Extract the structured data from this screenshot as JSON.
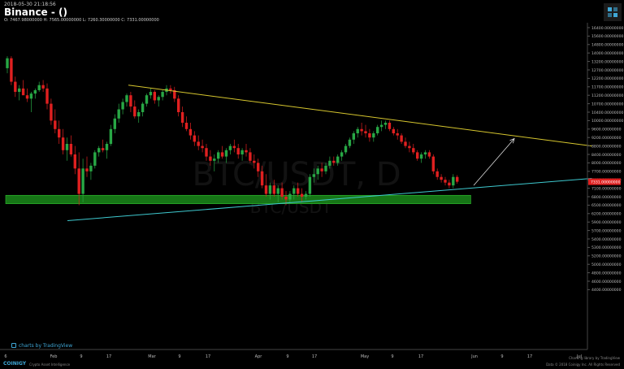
{
  "header": {
    "date": "2018-05-30 21:18:56",
    "title": "Binance - ()",
    "ohlc": "O: 7467.98000000 H: 7565.00000000 L: 7260.30000000 C: 7331.00000000"
  },
  "watermark": {
    "primary": "BTC/USDT, D",
    "secondary": "BTC/USDT"
  },
  "footer": {
    "tv_credit": "charts by TradingView",
    "brand": "COINIGY",
    "tagline": "Crypto Asset Intelligence",
    "right_line1": "Charting library by TradingView",
    "right_line2": "Data © 2018 Coinigy Inc. All Rights Reserved"
  },
  "colors": {
    "up": "#28a745",
    "down": "#e02020",
    "resistance_line": "#d6c62e",
    "support_line": "#3ec9cf",
    "support_zone": "#1a8a1a",
    "last_price_bg": "#e02020",
    "projection_arrow": "#dddddd"
  },
  "chart_data": {
    "type": "candlestick",
    "title": "BTC/USDT, D",
    "x_ticks": [
      "6",
      "Feb",
      "9",
      "17",
      "Mar",
      "9",
      "17",
      "Apr",
      "9",
      "17",
      "May",
      "9",
      "17",
      "Jun",
      "9",
      "17",
      "Jul"
    ],
    "y_ticks": [
      "16400.00000000",
      "15600.00000000",
      "14800.00000000",
      "14000.00000000",
      "13200.00000000",
      "12700.00000000",
      "12200.00000000",
      "11700.00000000",
      "11200.00000000",
      "10700.00000000",
      "10400.00000000",
      "10000.00000000",
      "9600.00000000",
      "9200.00000000",
      "8800.00000000",
      "8400.00000000",
      "8000.00000000",
      "7700.00000000",
      "7400.00000000",
      "7100.00000000",
      "6800.00000000",
      "6500.00000000",
      "6200.00000000",
      "5900.00000000",
      "5700.00000000",
      "5400.00000000",
      "5300.00000000",
      "5200.00000000",
      "5000.00000000",
      "4800.00000000",
      "4600.00000000",
      "4400.00000000"
    ],
    "last_price_label": "7331.00000000",
    "series": [
      {
        "name": "candles",
        "values": [
          [
            12800,
            13700,
            12500,
            13500
          ],
          [
            13500,
            13700,
            11800,
            12000
          ],
          [
            12000,
            12300,
            11100,
            11400
          ],
          [
            11400,
            11800,
            10900,
            11600
          ],
          [
            11600,
            12100,
            11300,
            11200
          ],
          [
            11200,
            11600,
            10800,
            11000
          ],
          [
            11000,
            11400,
            10400,
            11300
          ],
          [
            11300,
            11600,
            11000,
            11500
          ],
          [
            11500,
            12000,
            11400,
            11800
          ],
          [
            11800,
            12100,
            11400,
            11600
          ],
          [
            11600,
            11900,
            10500,
            10700
          ],
          [
            10700,
            11000,
            9800,
            10000
          ],
          [
            10000,
            10500,
            9400,
            9600
          ],
          [
            9600,
            10000,
            8900,
            9200
          ],
          [
            9200,
            9600,
            8400,
            8600
          ],
          [
            8600,
            9200,
            8100,
            8900
          ],
          [
            8900,
            9300,
            8300,
            8400
          ],
          [
            8400,
            8800,
            7600,
            7800
          ],
          [
            7800,
            8500,
            6500,
            6900
          ],
          [
            6900,
            8200,
            6600,
            7800
          ],
          [
            7800,
            8300,
            7500,
            7700
          ],
          [
            7700,
            8000,
            7400,
            7900
          ],
          [
            7900,
            8600,
            7800,
            8500
          ],
          [
            8500,
            8800,
            8300,
            8700
          ],
          [
            8700,
            9100,
            8500,
            8600
          ],
          [
            8600,
            9000,
            8200,
            8900
          ],
          [
            8900,
            9800,
            8800,
            9600
          ],
          [
            9600,
            10300,
            9400,
            10100
          ],
          [
            10100,
            10700,
            9900,
            10500
          ],
          [
            10500,
            11000,
            10300,
            10800
          ],
          [
            10800,
            11300,
            10600,
            11200
          ],
          [
            11200,
            11400,
            10400,
            10600
          ],
          [
            10600,
            10900,
            10100,
            10200
          ],
          [
            10200,
            10500,
            9900,
            10400
          ],
          [
            10400,
            10800,
            10200,
            10700
          ],
          [
            10700,
            11300,
            10600,
            11200
          ],
          [
            11200,
            11600,
            11000,
            11400
          ],
          [
            11400,
            11500,
            10700,
            10900
          ],
          [
            10900,
            11200,
            10600,
            11100
          ],
          [
            11100,
            11500,
            10900,
            11400
          ],
          [
            11400,
            11800,
            11200,
            11600
          ],
          [
            11600,
            11800,
            11300,
            11500
          ],
          [
            11500,
            11700,
            10800,
            11000
          ],
          [
            11000,
            11200,
            10200,
            10400
          ],
          [
            10400,
            10600,
            9700,
            9900
          ],
          [
            9900,
            10200,
            9500,
            9600
          ],
          [
            9600,
            9900,
            9100,
            9300
          ],
          [
            9300,
            9500,
            8800,
            9000
          ],
          [
            9000,
            9300,
            8600,
            8800
          ],
          [
            8800,
            9100,
            8500,
            8700
          ],
          [
            8700,
            8900,
            8100,
            8300
          ],
          [
            8300,
            8600,
            7900,
            8100
          ],
          [
            8100,
            8400,
            7700,
            8200
          ],
          [
            8200,
            8600,
            8000,
            8500
          ],
          [
            8500,
            8800,
            8200,
            8300
          ],
          [
            8300,
            8700,
            8000,
            8600
          ],
          [
            8600,
            8900,
            8400,
            8800
          ],
          [
            8800,
            9100,
            8500,
            8700
          ],
          [
            8700,
            8900,
            8200,
            8400
          ],
          [
            8400,
            8700,
            8100,
            8600
          ],
          [
            8600,
            8900,
            8300,
            8500
          ],
          [
            8500,
            8700,
            8000,
            8100
          ],
          [
            8100,
            8400,
            7800,
            8000
          ],
          [
            8000,
            8200,
            7500,
            7700
          ],
          [
            7700,
            7900,
            7100,
            7200
          ],
          [
            7200,
            7600,
            6800,
            6900
          ],
          [
            6900,
            7300,
            6700,
            7200
          ],
          [
            7200,
            7400,
            6800,
            6900
          ],
          [
            6900,
            7200,
            6600,
            7100
          ],
          [
            7100,
            7300,
            6700,
            6800
          ],
          [
            6800,
            7000,
            6500,
            6700
          ],
          [
            6700,
            7000,
            6600,
            6900
          ],
          [
            6900,
            7200,
            6700,
            7100
          ],
          [
            7100,
            7300,
            6800,
            6900
          ],
          [
            6900,
            7100,
            6600,
            6800
          ],
          [
            6800,
            7000,
            6700,
            6900
          ],
          [
            6900,
            7600,
            6800,
            7500
          ],
          [
            7500,
            7800,
            7300,
            7600
          ],
          [
            7600,
            7900,
            7400,
            7800
          ],
          [
            7800,
            8000,
            7500,
            7700
          ],
          [
            7700,
            8000,
            7600,
            7900
          ],
          [
            7900,
            8300,
            7800,
            8100
          ],
          [
            8100,
            8300,
            7900,
            8000
          ],
          [
            8000,
            8400,
            7900,
            8300
          ],
          [
            8300,
            8600,
            8100,
            8500
          ],
          [
            8500,
            8900,
            8400,
            8800
          ],
          [
            8800,
            9200,
            8700,
            9100
          ],
          [
            9100,
            9500,
            8900,
            9400
          ],
          [
            9400,
            9700,
            9200,
            9600
          ],
          [
            9600,
            9900,
            9300,
            9500
          ],
          [
            9500,
            9800,
            9200,
            9400
          ],
          [
            9400,
            9600,
            9000,
            9200
          ],
          [
            9200,
            9500,
            9000,
            9400
          ],
          [
            9400,
            9800,
            9300,
            9700
          ],
          [
            9700,
            10000,
            9500,
            9800
          ],
          [
            9800,
            10000,
            9600,
            9900
          ],
          [
            9900,
            10000,
            9500,
            9600
          ],
          [
            9600,
            9700,
            9300,
            9400
          ],
          [
            9400,
            9600,
            9100,
            9300
          ],
          [
            9300,
            9400,
            8900,
            9000
          ],
          [
            9000,
            9200,
            8700,
            8800
          ],
          [
            8800,
            9000,
            8500,
            8700
          ],
          [
            8700,
            8900,
            8400,
            8500
          ],
          [
            8500,
            8600,
            8100,
            8200
          ],
          [
            8200,
            8500,
            8000,
            8400
          ],
          [
            8400,
            8600,
            8200,
            8500
          ],
          [
            8500,
            8600,
            8200,
            8300
          ],
          [
            8300,
            8400,
            7600,
            7700
          ],
          [
            7700,
            7800,
            7400,
            7500
          ],
          [
            7500,
            7600,
            7300,
            7400
          ],
          [
            7400,
            7500,
            7200,
            7300
          ],
          [
            7300,
            7400,
            7100,
            7200
          ],
          [
            7200,
            7600,
            7100,
            7500
          ],
          [
            7500,
            7565,
            7260,
            7331
          ]
        ]
      }
    ],
    "annotations": [
      {
        "type": "trendline",
        "role": "resistance",
        "from": [
          0,
          11800
        ],
        "to": [
          127,
          8800
        ]
      },
      {
        "type": "trendline",
        "role": "support",
        "from": [
          0,
          5950
        ],
        "to": [
          127,
          7450
        ]
      },
      {
        "type": "zone",
        "role": "support",
        "from_index": 0,
        "to_index": 116,
        "low": 6550,
        "high": 6850
      },
      {
        "type": "arrow",
        "role": "projection",
        "from": [
          113,
          7200
        ],
        "to": [
          120,
          9150
        ]
      }
    ],
    "xlabel": "",
    "ylabel": "",
    "grid": false
  }
}
